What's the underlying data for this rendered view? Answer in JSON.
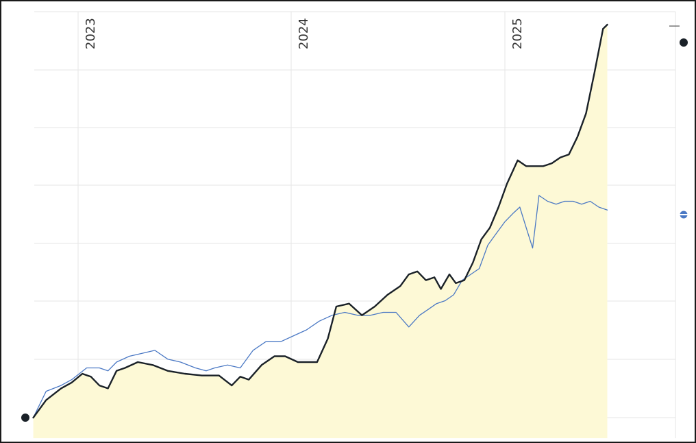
{
  "chart_data": {
    "type": "line",
    "title": "",
    "xlabel": "",
    "ylabel": "",
    "x_tick_labels": [
      "2023",
      "2024",
      "2025"
    ],
    "x_range": [
      2022.8,
      2025.8
    ],
    "y_range": [
      0,
      7
    ],
    "grid": true,
    "legend": "none",
    "area_fill": true,
    "series": [
      {
        "color": "#1a2128",
        "line_width": 2.4,
        "points": [
          [
            2022.79,
            0.0
          ],
          [
            2022.85,
            0.3
          ],
          [
            2022.92,
            0.5
          ],
          [
            2022.97,
            0.6
          ],
          [
            2023.02,
            0.75
          ],
          [
            2023.06,
            0.7
          ],
          [
            2023.1,
            0.55
          ],
          [
            2023.14,
            0.5
          ],
          [
            2023.18,
            0.8
          ],
          [
            2023.22,
            0.85
          ],
          [
            2023.28,
            0.95
          ],
          [
            2023.35,
            0.9
          ],
          [
            2023.42,
            0.8
          ],
          [
            2023.5,
            0.75
          ],
          [
            2023.58,
            0.72
          ],
          [
            2023.66,
            0.72
          ],
          [
            2023.72,
            0.55
          ],
          [
            2023.76,
            0.7
          ],
          [
            2023.8,
            0.65
          ],
          [
            2023.86,
            0.9
          ],
          [
            2023.92,
            1.05
          ],
          [
            2023.97,
            1.05
          ],
          [
            2024.03,
            0.95
          ],
          [
            2024.08,
            0.95
          ],
          [
            2024.12,
            0.95
          ],
          [
            2024.17,
            1.35
          ],
          [
            2024.21,
            1.9
          ],
          [
            2024.27,
            1.95
          ],
          [
            2024.33,
            1.75
          ],
          [
            2024.39,
            1.9
          ],
          [
            2024.45,
            2.1
          ],
          [
            2024.51,
            2.25
          ],
          [
            2024.55,
            2.45
          ],
          [
            2024.59,
            2.5
          ],
          [
            2024.63,
            2.35
          ],
          [
            2024.67,
            2.4
          ],
          [
            2024.7,
            2.2
          ],
          [
            2024.74,
            2.45
          ],
          [
            2024.77,
            2.3
          ],
          [
            2024.81,
            2.35
          ],
          [
            2024.85,
            2.65
          ],
          [
            2024.89,
            3.05
          ],
          [
            2024.93,
            3.25
          ],
          [
            2024.97,
            3.6
          ],
          [
            2025.01,
            4.0
          ],
          [
            2025.06,
            4.4
          ],
          [
            2025.1,
            4.3
          ],
          [
            2025.14,
            4.3
          ],
          [
            2025.18,
            4.3
          ],
          [
            2025.22,
            4.35
          ],
          [
            2025.26,
            4.45
          ],
          [
            2025.3,
            4.5
          ],
          [
            2025.34,
            4.8
          ],
          [
            2025.38,
            5.2
          ],
          [
            2025.42,
            5.9
          ],
          [
            2025.46,
            6.65
          ],
          [
            2025.48,
            6.72
          ]
        ],
        "end_marker": true
      },
      {
        "color": "#4a78c4",
        "line_width": 1.3,
        "points": [
          [
            2022.79,
            0.0
          ],
          [
            2022.85,
            0.45
          ],
          [
            2022.92,
            0.55
          ],
          [
            2022.97,
            0.65
          ],
          [
            2023.04,
            0.85
          ],
          [
            2023.1,
            0.85
          ],
          [
            2023.14,
            0.8
          ],
          [
            2023.18,
            0.95
          ],
          [
            2023.24,
            1.05
          ],
          [
            2023.3,
            1.1
          ],
          [
            2023.36,
            1.15
          ],
          [
            2023.42,
            1.0
          ],
          [
            2023.48,
            0.95
          ],
          [
            2023.55,
            0.85
          ],
          [
            2023.6,
            0.8
          ],
          [
            2023.64,
            0.85
          ],
          [
            2023.7,
            0.9
          ],
          [
            2023.76,
            0.85
          ],
          [
            2023.82,
            1.15
          ],
          [
            2023.88,
            1.3
          ],
          [
            2023.95,
            1.3
          ],
          [
            2024.01,
            1.4
          ],
          [
            2024.07,
            1.5
          ],
          [
            2024.13,
            1.65
          ],
          [
            2024.19,
            1.75
          ],
          [
            2024.25,
            1.8
          ],
          [
            2024.31,
            1.75
          ],
          [
            2024.37,
            1.75
          ],
          [
            2024.43,
            1.8
          ],
          [
            2024.49,
            1.8
          ],
          [
            2024.55,
            1.55
          ],
          [
            2024.6,
            1.75
          ],
          [
            2024.64,
            1.85
          ],
          [
            2024.68,
            1.95
          ],
          [
            2024.72,
            2.0
          ],
          [
            2024.76,
            2.1
          ],
          [
            2024.8,
            2.35
          ],
          [
            2024.84,
            2.45
          ],
          [
            2024.88,
            2.55
          ],
          [
            2024.92,
            2.95
          ],
          [
            2024.96,
            3.15
          ],
          [
            2025.0,
            3.35
          ],
          [
            2025.04,
            3.5
          ],
          [
            2025.07,
            3.6
          ],
          [
            2025.1,
            3.25
          ],
          [
            2025.13,
            2.9
          ],
          [
            2025.16,
            3.8
          ],
          [
            2025.2,
            3.7
          ],
          [
            2025.24,
            3.65
          ],
          [
            2025.28,
            3.7
          ],
          [
            2025.32,
            3.7
          ],
          [
            2025.36,
            3.65
          ],
          [
            2025.4,
            3.7
          ],
          [
            2025.44,
            3.6
          ],
          [
            2025.48,
            3.55
          ]
        ],
        "end_marker": true
      }
    ]
  }
}
